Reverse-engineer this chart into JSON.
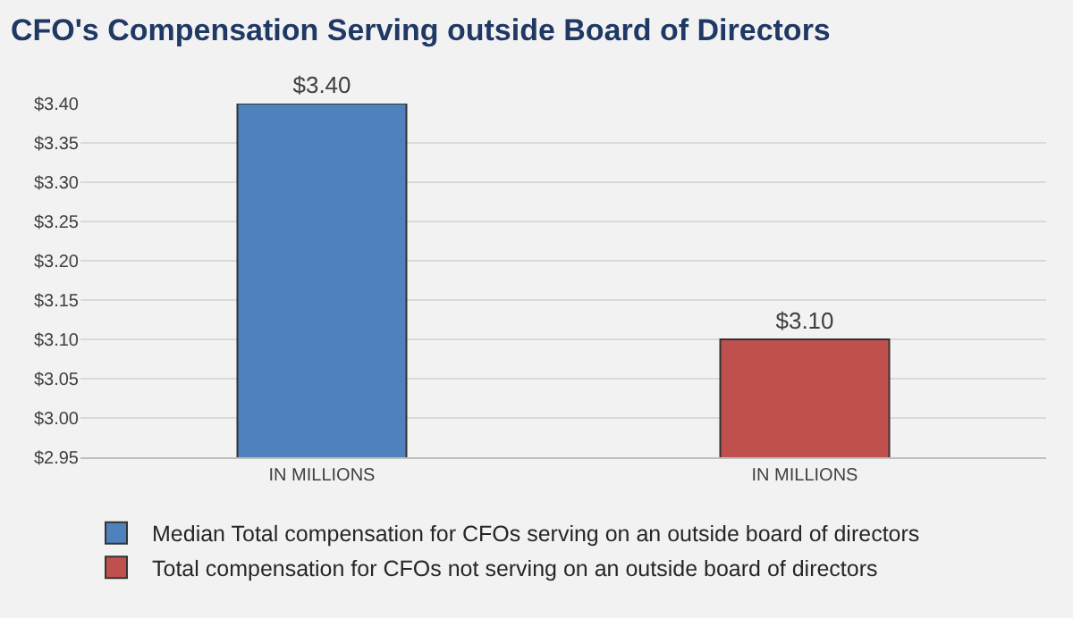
{
  "chart_data": {
    "type": "bar",
    "title": "CFO's Compensation Serving outside Board of Directors",
    "categories": [
      "IN MILLIONS",
      "IN MILLIONS"
    ],
    "series": [
      {
        "name": "Median Total compensation for CFOs serving on an outside board of directors",
        "color": "#4f81bd",
        "values": [
          3.4,
          null
        ],
        "value_labels": [
          "$3.40",
          null
        ]
      },
      {
        "name": "Total compensation for CFOs not serving on an outside board of directors",
        "color": "#c0504d",
        "values": [
          null,
          3.1
        ],
        "value_labels": [
          null,
          "$3.10"
        ]
      }
    ],
    "ylim": [
      2.95,
      3.4
    ],
    "yticks": [
      {
        "value": 2.95,
        "label": "$2.95"
      },
      {
        "value": 3.0,
        "label": "$3.00"
      },
      {
        "value": 3.05,
        "label": "$3.05"
      },
      {
        "value": 3.1,
        "label": "$3.10"
      },
      {
        "value": 3.15,
        "label": "$3.15"
      },
      {
        "value": 3.2,
        "label": "$3.20"
      },
      {
        "value": 3.25,
        "label": "$3.25"
      },
      {
        "value": 3.3,
        "label": "$3.30"
      },
      {
        "value": 3.35,
        "label": "$3.35"
      },
      {
        "value": 3.4,
        "label": "$3.40"
      }
    ],
    "grid": "y",
    "legend": "bottom"
  }
}
